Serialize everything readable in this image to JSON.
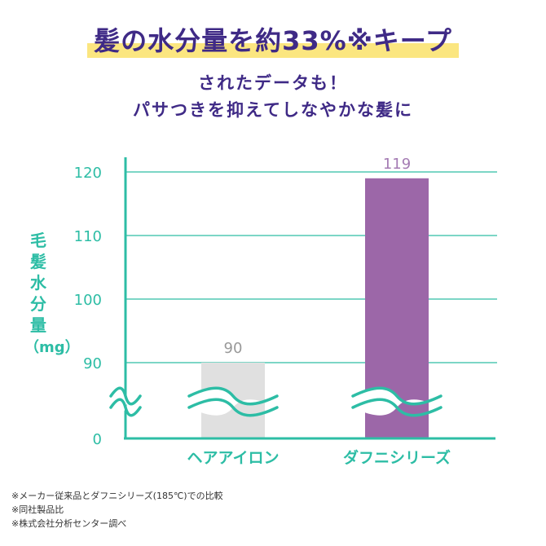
{
  "header": {
    "headline": "髪の水分量を約33%※キープ",
    "subline1": "されたデータも！",
    "subline2": "パサつきを抑えてしなやかな髪に"
  },
  "colors": {
    "headline": "#3f2a86",
    "highlight": "#fbe680",
    "axis": "#2dbda5",
    "bar_hair_iron": "#e0e0e0",
    "bar_daphne": "#9c67a8"
  },
  "chart_data": {
    "type": "bar",
    "ylabel": "毛髪水分量",
    "yunit": "（mg）",
    "categories": [
      "ヘアアイロン",
      "ダフニシリーズ"
    ],
    "values": [
      90,
      119
    ],
    "value_labels": [
      "90",
      "119"
    ],
    "yticks": [
      "0",
      "90",
      "100",
      "110",
      "120"
    ],
    "ylim": [
      90,
      120
    ],
    "axis_break": true,
    "grid": true,
    "bar_colors": [
      "#e0e0e0",
      "#9c67a8"
    ],
    "value_label_colors": [
      "#999999",
      "#a47bb3"
    ]
  },
  "footnotes": [
    "※メーカー従来品とダフニシリーズ(185℃)での比較",
    "※同社製品比",
    "※株式会社分析センター調べ"
  ]
}
